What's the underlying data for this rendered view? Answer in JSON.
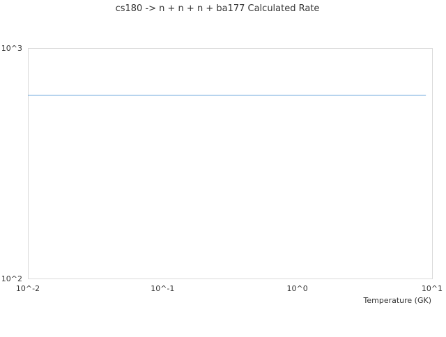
{
  "chart_data": {
    "type": "line",
    "title": "cs180 -> n + n + n + ba177 Calculated Rate",
    "xlabel": "Temperature (GK)",
    "ylabel": "",
    "x_scale": "log",
    "y_scale": "log",
    "xlim": [
      0.01,
      10
    ],
    "ylim": [
      100,
      1000
    ],
    "x_ticks": [
      {
        "value": 0.01,
        "label": "10^-2"
      },
      {
        "value": 0.1,
        "label": "10^-1"
      },
      {
        "value": 1,
        "label": "10^0"
      },
      {
        "value": 10,
        "label": "10^1"
      }
    ],
    "y_ticks": [
      {
        "value": 100,
        "label": "10^2"
      },
      {
        "value": 1000,
        "label": "10^3"
      }
    ],
    "grid": false,
    "series": [
      {
        "color": "#6fa8dc",
        "x": [
          0.01,
          9
        ],
        "y": [
          623,
          623
        ]
      }
    ]
  }
}
